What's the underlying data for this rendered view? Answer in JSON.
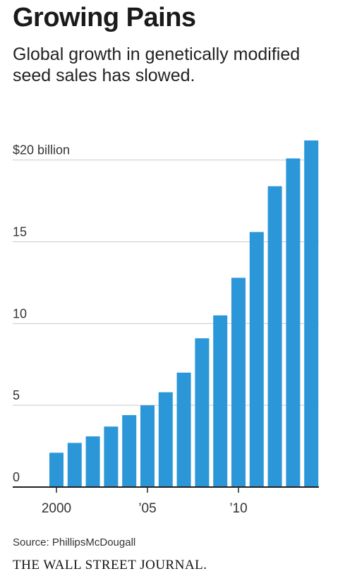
{
  "header": {
    "title": "Growing Pains",
    "subtitle": "Global growth in genetically modified seed sales has slowed."
  },
  "footer": {
    "source": "Source: PhillipsMcDougall",
    "publisher": "THE WALL STREET JOURNAL."
  },
  "colors": {
    "bar": "#2b97d9",
    "grid": "#c9c9c9",
    "axis": "#222222"
  },
  "chart_data": {
    "type": "bar",
    "title": "Growing Pains",
    "subtitle": "Global growth in genetically modified seed sales has slowed.",
    "categories": [
      "2000",
      "2001",
      "2002",
      "2003",
      "2004",
      "2005",
      "2006",
      "2007",
      "2008",
      "2009",
      "2010",
      "2011",
      "2012",
      "2013",
      "2014"
    ],
    "values": [
      2.1,
      2.7,
      3.1,
      3.7,
      4.4,
      5.0,
      5.8,
      7.0,
      9.1,
      10.5,
      12.8,
      15.6,
      18.4,
      20.1,
      21.2
    ],
    "ylim": [
      0,
      21.5
    ],
    "y_ticks": [
      {
        "value": 0,
        "label": "0"
      },
      {
        "value": 5,
        "label": "5"
      },
      {
        "value": 10,
        "label": "10"
      },
      {
        "value": 15,
        "label": "15"
      },
      {
        "value": 20,
        "label": "$20 billion"
      }
    ],
    "x_ticks": [
      {
        "category": "2000",
        "label": "2000"
      },
      {
        "category": "2005",
        "label": "’05"
      },
      {
        "category": "2010",
        "label": "’10"
      }
    ],
    "grid": true,
    "legend": "none"
  }
}
